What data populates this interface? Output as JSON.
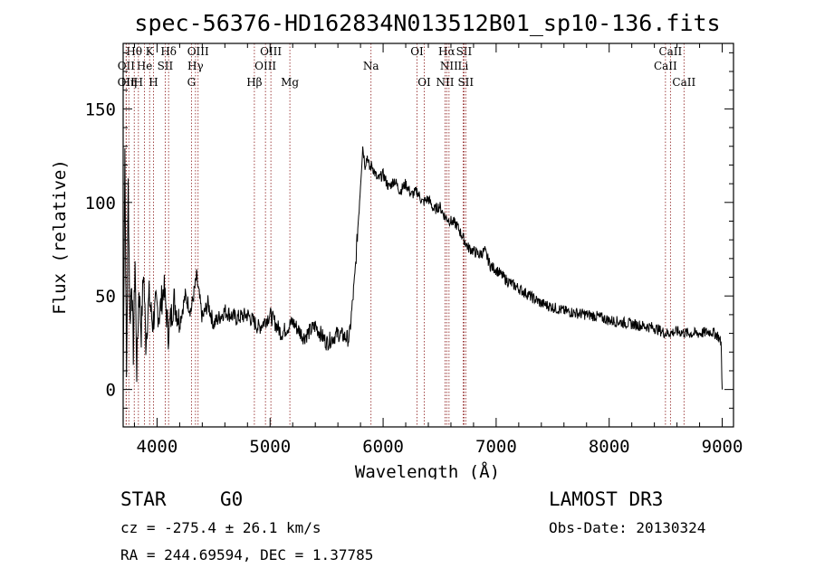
{
  "chart_data": {
    "type": "line",
    "title": "spec-56376-HD162834N013512B01_sp10-136.fits",
    "xlabel": "Wavelength (Å)",
    "ylabel": "Flux (relative)",
    "xlim": [
      3700,
      9100
    ],
    "ylim": [
      -20,
      185
    ],
    "xticks": [
      4000,
      5000,
      6000,
      7000,
      8000,
      9000
    ],
    "yticks": [
      0,
      50,
      100,
      150
    ],
    "series": [
      {
        "name": "flux",
        "x": [
          3700,
          3715,
          3730,
          3745,
          3760,
          3775,
          3790,
          3805,
          3820,
          3840,
          3860,
          3880,
          3900,
          3930,
          3960,
          3990,
          4020,
          4060,
          4100,
          4150,
          4200,
          4250,
          4300,
          4350,
          4400,
          4450,
          4500,
          4600,
          4700,
          4800,
          4900,
          5000,
          5100,
          5200,
          5300,
          5400,
          5500,
          5600,
          5700,
          5750,
          5780,
          5800,
          5820,
          5840,
          5860,
          5880,
          5900,
          5950,
          6000,
          6050,
          6100,
          6150,
          6200,
          6250,
          6300,
          6350,
          6400,
          6450,
          6500,
          6550,
          6600,
          6650,
          6700,
          6750,
          6800,
          6850,
          6900,
          6950,
          7000,
          7100,
          7200,
          7300,
          7400,
          7500,
          7600,
          7700,
          7800,
          7900,
          8000,
          8100,
          8200,
          8300,
          8400,
          8500,
          8600,
          8700,
          8800,
          8900,
          8960,
          8990,
          9000
        ],
        "y": [
          0,
          130,
          5,
          110,
          35,
          60,
          20,
          70,
          10,
          55,
          30,
          65,
          25,
          50,
          35,
          45,
          40,
          55,
          30,
          48,
          36,
          50,
          42,
          60,
          38,
          46,
          35,
          42,
          38,
          40,
          33,
          40,
          30,
          36,
          28,
          34,
          25,
          30,
          27,
          60,
          90,
          110,
          130,
          120,
          125,
          118,
          120,
          112,
          115,
          108,
          112,
          106,
          110,
          104,
          106,
          100,
          102,
          96,
          98,
          92,
          90,
          88,
          82,
          76,
          74,
          72,
          74,
          66,
          64,
          58,
          54,
          50,
          46,
          44,
          42,
          41,
          40,
          39,
          37,
          36,
          35,
          34,
          33,
          30,
          31,
          30,
          30,
          31,
          29,
          25,
          0
        ]
      }
    ],
    "spectral_lines": [
      {
        "label": "Hθ",
        "x": 3798,
        "row": 1
      },
      {
        "label": "K",
        "x": 3934,
        "row": 1
      },
      {
        "label": "Hδ",
        "x": 4102,
        "row": 1
      },
      {
        "label": "OIII",
        "x": 4363,
        "row": 1
      },
      {
        "label": "OIII",
        "x": 5007,
        "row": 1
      },
      {
        "label": "OI",
        "x": 6300,
        "row": 1
      },
      {
        "label": "Hα",
        "x": 6563,
        "row": 1
      },
      {
        "label": "SII",
        "x": 6716,
        "row": 1
      },
      {
        "label": "CaII",
        "x": 8542,
        "row": 1
      },
      {
        "label": "OII",
        "x": 3727,
        "row": 2
      },
      {
        "label": "He",
        "x": 3889,
        "row": 2
      },
      {
        "label": "SII",
        "x": 4072,
        "row": 2
      },
      {
        "label": "Hγ",
        "x": 4340,
        "row": 2
      },
      {
        "label": "OIII",
        "x": 4959,
        "row": 2
      },
      {
        "label": "Na",
        "x": 5893,
        "row": 2
      },
      {
        "label": "NII",
        "x": 6583,
        "row": 2
      },
      {
        "label": "Li",
        "x": 6708,
        "row": 2
      },
      {
        "label": "CaII",
        "x": 8498,
        "row": 2
      },
      {
        "label": "OII",
        "x": 3726,
        "row": 3
      },
      {
        "label": "H",
        "x": 3835,
        "row": 3
      },
      {
        "label": "Hη",
        "x": 3750,
        "row": 3
      },
      {
        "label": "H",
        "x": 3968,
        "row": 3
      },
      {
        "label": "G",
        "x": 4304,
        "row": 3
      },
      {
        "label": "Hβ",
        "x": 4861,
        "row": 3
      },
      {
        "label": "Mg",
        "x": 5175,
        "row": 3
      },
      {
        "label": "OI",
        "x": 6364,
        "row": 3
      },
      {
        "label": "NII",
        "x": 6548,
        "row": 3
      },
      {
        "label": "SII",
        "x": 6731,
        "row": 3
      },
      {
        "label": "CaII",
        "x": 8662,
        "row": 3
      }
    ]
  },
  "info": {
    "object_class": "STAR",
    "subclass": "G0",
    "survey": "LAMOST DR3",
    "cz": "cz = -275.4 ± 26.1 km/s",
    "obs_date": "Obs-Date: 20130324",
    "coords": "RA = 244.69594, DEC =   1.37785"
  },
  "colors": {
    "line_marker": "#8b1a1a",
    "spectrum": "#000000"
  }
}
